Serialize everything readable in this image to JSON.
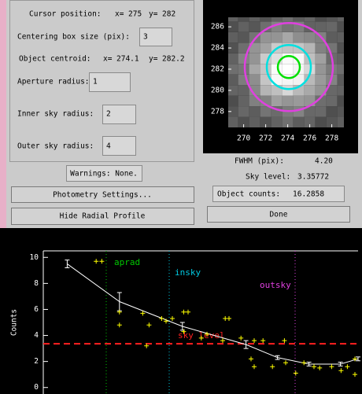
{
  "cursor": {
    "label": "Cursor position:",
    "x_label": "x=",
    "x": 275,
    "y_label": "y=",
    "y": 282
  },
  "centering": {
    "label": "Centering box size (pix):",
    "value": 3
  },
  "centroid": {
    "label": "Object centroid:",
    "x_label": "x=",
    "x": 274.1,
    "y_label": "y=",
    "y": 282.2
  },
  "aperture": {
    "label": "Aperture radius:",
    "value": 1
  },
  "inner_sky": {
    "label": "Inner sky radius:",
    "value": 2
  },
  "outer_sky": {
    "label": "Outer sky radius:",
    "value": 4
  },
  "warnings": "Warnings: None.",
  "buttons": {
    "settings": "Photometry Settings...",
    "hide": "Hide Radial Profile",
    "done": "Done"
  },
  "fwhm": {
    "label": "FWHM (pix):",
    "value": "4.20"
  },
  "sky": {
    "label": "Sky level:",
    "value": 3.35772
  },
  "counts": {
    "label": "Object counts:",
    "value": 16.2858
  },
  "image": {
    "xlim": [
      268.6,
      279.1
    ],
    "ylim": [
      276.5,
      286.9
    ],
    "xticks": [
      270,
      272,
      274,
      276,
      278
    ],
    "yticks": [
      278,
      280,
      282,
      284,
      286
    ]
  },
  "chart_data": {
    "type": "scatter",
    "ylabel": "Counts",
    "xlim": [
      0,
      5
    ],
    "ylim": [
      -0.5,
      10.5
    ],
    "yticks": [
      0,
      2,
      4,
      6,
      8,
      10
    ],
    "profile": {
      "color": "#ffffff",
      "x": [
        0.38,
        1.21,
        2.21,
        3.22,
        3.72,
        4.22,
        4.72,
        5.0
      ],
      "y": [
        9.5,
        6.6,
        4.7,
        3.3,
        2.3,
        1.8,
        1.8,
        2.2
      ],
      "err": [
        0.3,
        0.7,
        0.3,
        0.3,
        0.15,
        0.15,
        0.15,
        0.15
      ]
    },
    "points": {
      "color": "#ffff00",
      "x": [
        0.84,
        0.93,
        1.21,
        1.21,
        1.58,
        1.68,
        1.64,
        1.88,
        1.95,
        2.05,
        2.23,
        2.3,
        2.23,
        2.51,
        2.6,
        2.89,
        2.95,
        2.85,
        3.14,
        3.35,
        3.49,
        3.3,
        3.35,
        3.64,
        3.83,
        3.85,
        4.01,
        4.14,
        4.3,
        4.39,
        4.58,
        4.73,
        4.83,
        4.95,
        4.95
      ],
      "y": [
        9.7,
        9.7,
        5.8,
        4.8,
        5.7,
        4.8,
        3.2,
        5.3,
        5.1,
        5.3,
        5.8,
        5.8,
        4.3,
        3.8,
        4.1,
        5.3,
        5.3,
        3.6,
        3.8,
        3.6,
        3.6,
        2.2,
        1.6,
        1.6,
        3.6,
        1.9,
        1.1,
        1.9,
        1.6,
        1.5,
        1.6,
        1.3,
        1.6,
        1.0,
        2.2
      ]
    },
    "markers": [
      {
        "label": "aprad",
        "color": "#00c800"
      },
      {
        "label": "insky",
        "color": "#00c8e0"
      },
      {
        "label": "outsky",
        "color": "#e040e0"
      }
    ],
    "sky_line": {
      "label": "sky level",
      "color": "#ff2020"
    }
  }
}
